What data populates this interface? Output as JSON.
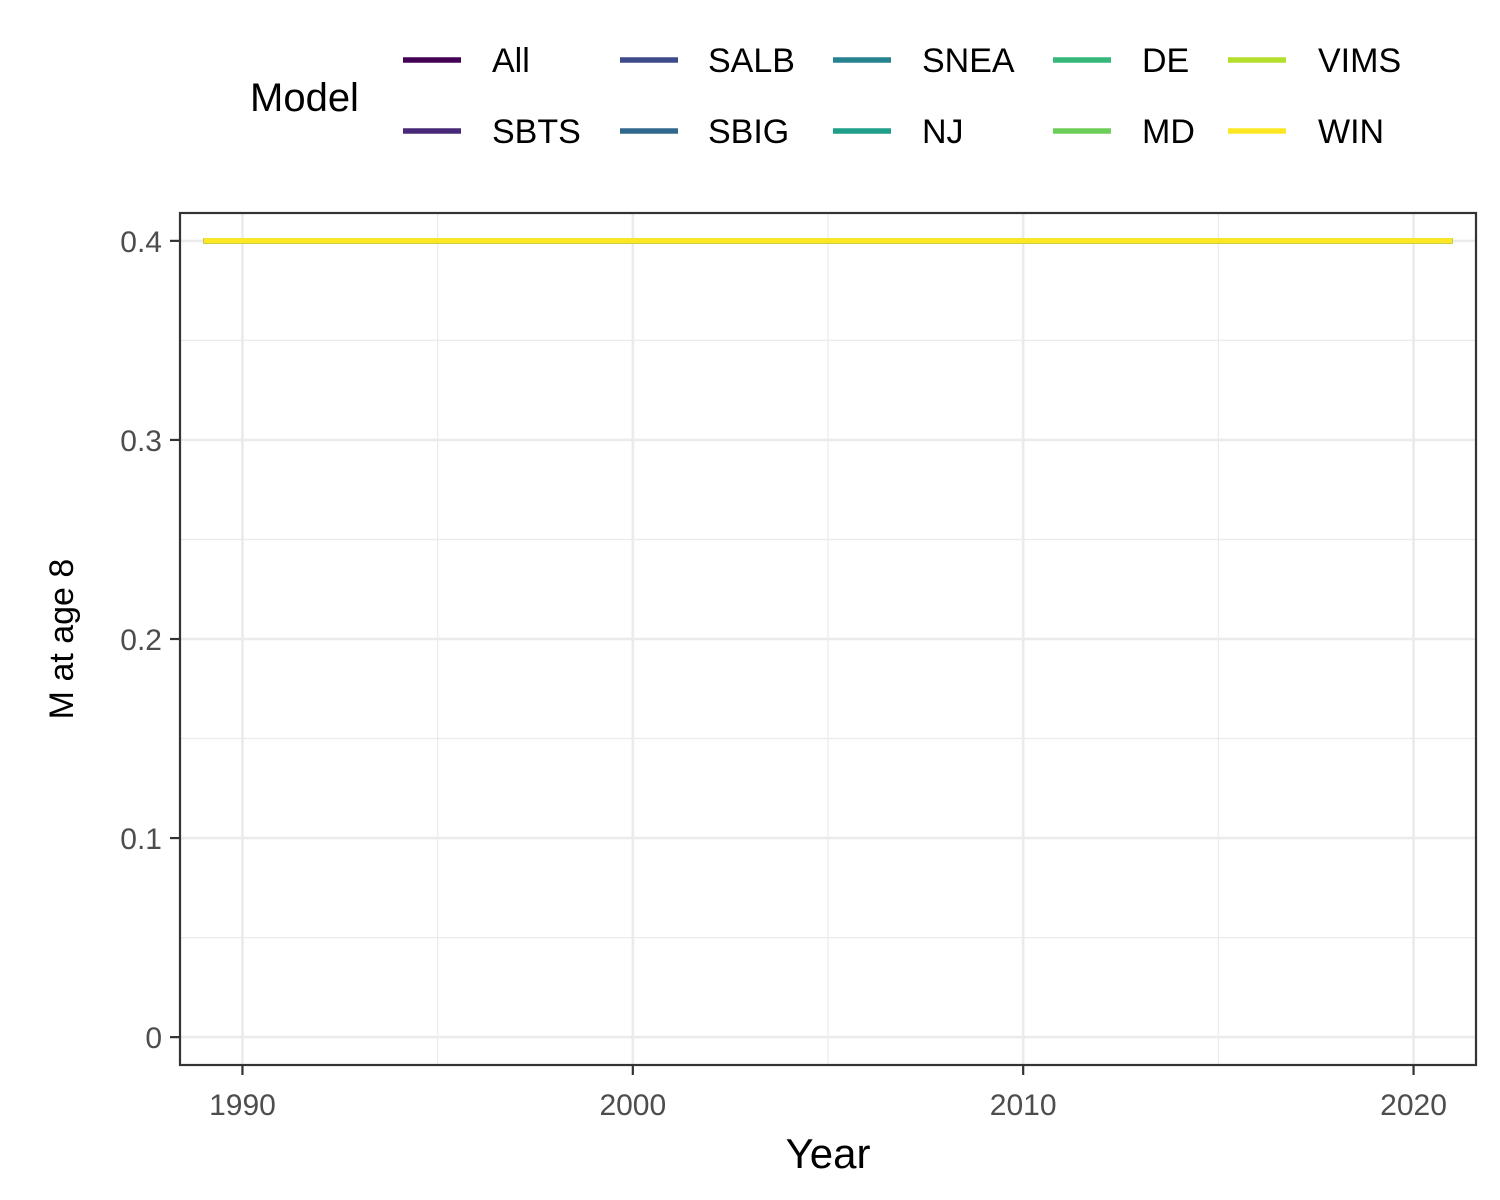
{
  "chart_data": {
    "type": "line",
    "xlabel": "Year",
    "ylabel": "M at age 8",
    "xlim": [
      1989,
      2021
    ],
    "ylim": [
      0,
      0.4
    ],
    "xlim_padded": [
      1988.4,
      2021.6
    ],
    "ylim_padded": [
      -0.014,
      0.414
    ],
    "x_ticks": [
      1990,
      2000,
      2010,
      2020
    ],
    "x_tick_labels": [
      "1990",
      "2000",
      "2010",
      "2020"
    ],
    "y_ticks": [
      0,
      0.1,
      0.2,
      0.3,
      0.4
    ],
    "y_tick_labels": [
      "0",
      "0.1",
      "0.2",
      "0.3",
      "0.4"
    ],
    "x_minor_ticks": [
      1995,
      2005,
      2015
    ],
    "y_minor_ticks": [
      0.05,
      0.15,
      0.25,
      0.35
    ],
    "grid": true,
    "legend": {
      "title": "Model",
      "position": "top",
      "columns": [
        [
          "All",
          "SBTS"
        ],
        [
          "SALB",
          "SBIG"
        ],
        [
          "SNEA",
          "NJ"
        ],
        [
          "DE",
          "MD"
        ],
        [
          "VIMS",
          "WIN"
        ]
      ]
    },
    "series": [
      {
        "name": "All",
        "color": "#440154",
        "x": [
          1989,
          2021
        ],
        "y": [
          0.4,
          0.4
        ]
      },
      {
        "name": "SBTS",
        "color": "#482878",
        "x": [
          1989,
          2021
        ],
        "y": [
          0.4,
          0.4
        ]
      },
      {
        "name": "SALB",
        "color": "#3E4A89",
        "x": [
          1989,
          2021
        ],
        "y": [
          0.4,
          0.4
        ]
      },
      {
        "name": "SBIG",
        "color": "#31688E",
        "x": [
          1989,
          2021
        ],
        "y": [
          0.4,
          0.4
        ]
      },
      {
        "name": "SNEA",
        "color": "#26828E",
        "x": [
          1989,
          2021
        ],
        "y": [
          0.4,
          0.4
        ]
      },
      {
        "name": "NJ",
        "color": "#1F9E89",
        "x": [
          1989,
          2021
        ],
        "y": [
          0.4,
          0.4
        ]
      },
      {
        "name": "DE",
        "color": "#35B779",
        "x": [
          1989,
          2021
        ],
        "y": [
          0.4,
          0.4
        ]
      },
      {
        "name": "MD",
        "color": "#6DCD59",
        "x": [
          1989,
          2021
        ],
        "y": [
          0.4,
          0.4
        ]
      },
      {
        "name": "VIMS",
        "color": "#B4DE2C",
        "x": [
          1989,
          2021
        ],
        "y": [
          0.4,
          0.4
        ]
      },
      {
        "name": "WIN",
        "color": "#FDE725",
        "x": [
          1989,
          2021
        ],
        "y": [
          0.4,
          0.4
        ]
      }
    ]
  }
}
